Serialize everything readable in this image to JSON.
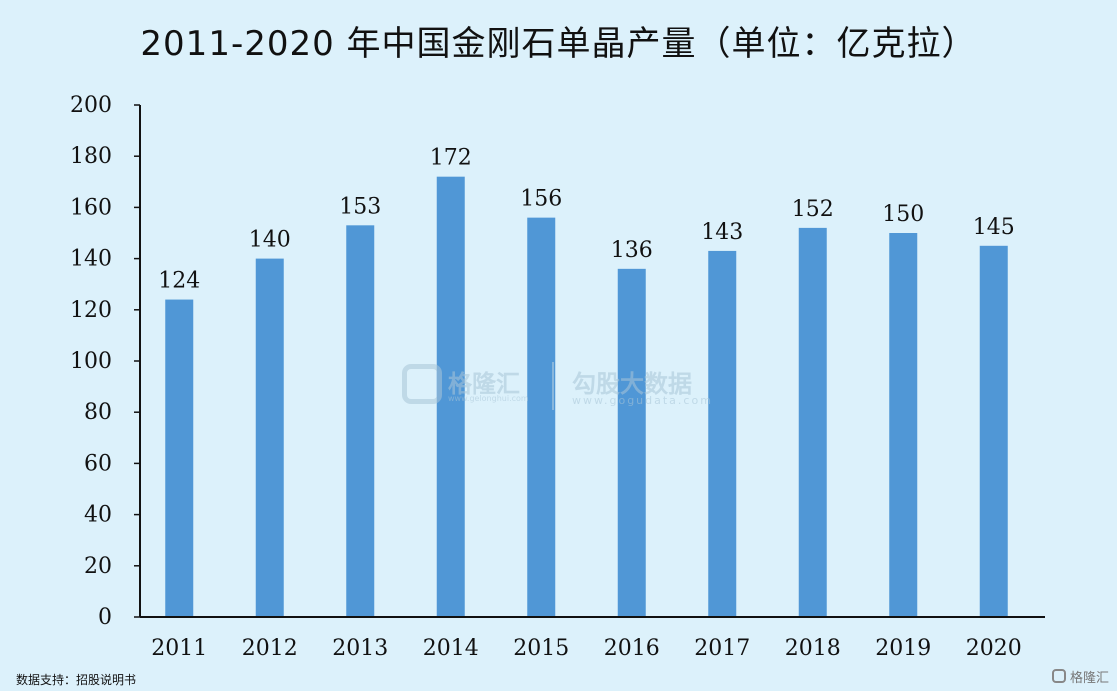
{
  "chart_data": {
    "type": "bar",
    "title": "2011-2020 年中国金刚石单晶产量（单位：亿克拉）",
    "categories": [
      "2011",
      "2012",
      "2013",
      "2014",
      "2015",
      "2016",
      "2017",
      "2018",
      "2019",
      "2020"
    ],
    "values": [
      124,
      140,
      153,
      172,
      156,
      136,
      143,
      152,
      150,
      145
    ],
    "ylim": [
      0,
      200
    ],
    "yticks": [
      0,
      20,
      40,
      60,
      80,
      100,
      120,
      140,
      160,
      180,
      200
    ],
    "bar_color": "#5097d6",
    "grid": false,
    "data_labels": true
  },
  "source": "数据支持：招股说明书",
  "watermark": {
    "brand": "格隆汇",
    "brand_url": "www.gelonghui.com",
    "partner": "勾股大数据",
    "partner_url": "www.gogudata.com",
    "logo_icon": "gelonghui-logo-icon"
  },
  "corner_badge": {
    "text": "格隆汇",
    "icon": "gelonghui-logo-icon"
  },
  "colors": {
    "background": "#dcf1fb",
    "bar": "#5097d6",
    "axis": "#111111"
  }
}
